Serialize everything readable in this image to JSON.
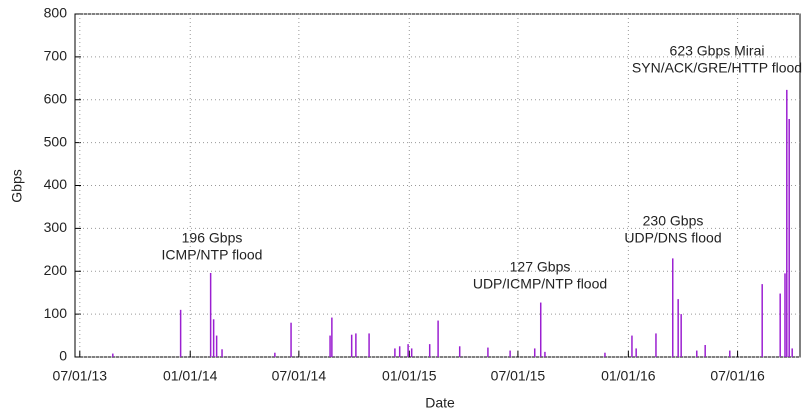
{
  "chart_data": {
    "type": "spike",
    "x_label": "Date",
    "y_label": "Gbps",
    "color": "#9b1fd1",
    "grid": true,
    "x": [
      "2013-08-25",
      "2013-12-16",
      "2014-02-04",
      "2014-02-09",
      "2014-02-14",
      "2014-02-23",
      "2014-05-22",
      "2014-06-18",
      "2014-08-22",
      "2014-08-25",
      "2014-09-27",
      "2014-10-04",
      "2014-10-26",
      "2014-12-08",
      "2014-12-16",
      "2014-12-30",
      "2015-01-05",
      "2015-02-04",
      "2015-02-18",
      "2015-03-26",
      "2015-05-12",
      "2015-06-18",
      "2015-07-29",
      "2015-08-08",
      "2015-08-15",
      "2015-11-23",
      "2016-01-07",
      "2016-01-14",
      "2016-02-16",
      "2016-03-15",
      "2016-03-24",
      "2016-03-29",
      "2016-04-24",
      "2016-05-08",
      "2016-06-18",
      "2016-08-11",
      "2016-09-10",
      "2016-09-18",
      "2016-09-21",
      "2016-09-25",
      "2016-09-30"
    ],
    "values": [
      8,
      110,
      196,
      88,
      50,
      18,
      10,
      80,
      50,
      92,
      52,
      55,
      55,
      20,
      25,
      30,
      20,
      30,
      85,
      25,
      22,
      15,
      20,
      127,
      12,
      10,
      50,
      20,
      55,
      230,
      135,
      100,
      15,
      28,
      15,
      170,
      148,
      195,
      623,
      555,
      20
    ],
    "xlim": [
      "2013-06-23",
      "2016-10-13"
    ],
    "xticks": [
      {
        "value": "2013-07-01",
        "label": "07/01/13"
      },
      {
        "value": "2014-01-01",
        "label": "01/01/14"
      },
      {
        "value": "2014-07-01",
        "label": "07/01/14"
      },
      {
        "value": "2015-01-01",
        "label": "01/01/15"
      },
      {
        "value": "2015-07-01",
        "label": "07/01/15"
      },
      {
        "value": "2016-01-01",
        "label": "01/01/16"
      },
      {
        "value": "2016-07-01",
        "label": "07/01/16"
      }
    ],
    "ylim": [
      0,
      800
    ],
    "yticks": [
      0,
      100,
      200,
      300,
      400,
      500,
      600,
      700,
      800
    ],
    "annotations": [
      [
        "196 Gbps",
        "ICMP/NTP flood"
      ],
      [
        "127 Gbps",
        "UDP/ICMP/NTP flood"
      ],
      [
        "230 Gbps",
        "UDP/DNS flood"
      ],
      [
        "623 Gbps Mirai",
        "SYN/ACK/GRE/HTTP flood"
      ]
    ]
  }
}
